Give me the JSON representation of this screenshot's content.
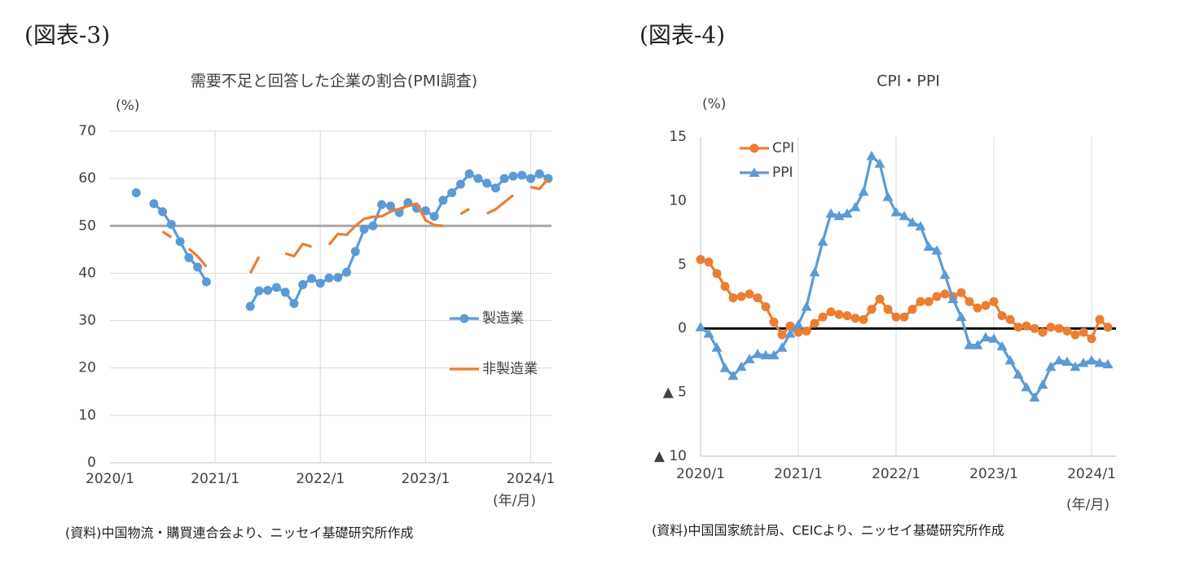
{
  "chart_data": [
    {
      "type": "line",
      "figure_label": "(図表-3)",
      "title": "需要不足と回答した企業の割合(PMI調査)",
      "y_unit": "(%)",
      "x_unit": "(年/月)",
      "source": "(資料)中国物流・購買連合会より、ニッセイ基礎研究所作成",
      "categories": [
        "2020/1",
        null,
        null,
        null,
        null,
        null,
        null,
        null,
        null,
        null,
        null,
        null,
        "2021/1",
        null,
        null,
        null,
        null,
        null,
        null,
        null,
        null,
        null,
        null,
        null,
        "2022/1",
        null,
        null,
        null,
        null,
        null,
        null,
        null,
        null,
        null,
        null,
        null,
        "2023/1",
        null,
        null,
        null,
        null,
        null,
        null,
        null,
        null,
        null,
        null,
        null,
        "2024/1",
        null,
        null
      ],
      "series": [
        {
          "name": "製造業",
          "color": "#5b9bd5",
          "marker": "circle",
          "values": [
            null,
            null,
            null,
            57,
            null,
            54.7,
            53,
            50.3,
            46.7,
            43.3,
            41.3,
            38.2,
            null,
            null,
            null,
            null,
            33,
            36.3,
            36.4,
            37,
            36,
            33.6,
            37.6,
            38.9,
            37.9,
            39,
            39.1,
            40.2,
            44.6,
            49.3,
            50,
            54.5,
            54.2,
            52.8,
            54.9,
            53.7,
            53.2,
            52,
            55.4,
            57,
            58.8,
            61,
            60,
            59,
            58,
            60,
            60.5,
            60.7,
            60,
            61,
            60
          ]
        },
        {
          "name": "非製造業",
          "color": "#ed7d31",
          "marker": "none",
          "values": [
            null,
            null,
            null,
            null,
            null,
            null,
            48.8,
            47.6,
            null,
            45.2,
            43.6,
            41.4,
            null,
            null,
            null,
            null,
            40,
            43.5,
            null,
            null,
            44.2,
            43.6,
            46.2,
            45.6,
            null,
            46,
            48.3,
            48.1,
            50,
            51.5,
            51.9,
            52,
            53,
            53.6,
            54.2,
            54.7,
            51.2,
            50.2,
            50,
            null,
            52.5,
            53.6,
            null,
            52.6,
            53.5,
            55,
            56.5,
            null,
            58.2,
            57.8,
            60
          ]
        }
      ],
      "ylim": [
        0,
        70
      ],
      "yticks": [
        0,
        10,
        20,
        30,
        40,
        50,
        60,
        70
      ],
      "y_grid": true,
      "x_grid": true,
      "reference_line": 50,
      "reference_color": "#a6a6a6",
      "legend": "center right"
    },
    {
      "type": "line",
      "figure_label": "(図表-4)",
      "title": "CPI・PPI",
      "y_unit": "(%)",
      "x_unit": "(年/月)",
      "source": "(資料)中国国家統計局、CEICより、ニッセイ基礎研究所作成",
      "categories": [
        "2020/1",
        null,
        null,
        null,
        null,
        null,
        null,
        null,
        null,
        null,
        null,
        null,
        "2021/1",
        null,
        null,
        null,
        null,
        null,
        null,
        null,
        null,
        null,
        null,
        null,
        "2022/1",
        null,
        null,
        null,
        null,
        null,
        null,
        null,
        null,
        null,
        null,
        null,
        "2023/1",
        null,
        null,
        null,
        null,
        null,
        null,
        null,
        null,
        null,
        null,
        null,
        "2024/1",
        null,
        null
      ],
      "series": [
        {
          "name": "CPI",
          "color": "#ed7d31",
          "marker": "circle",
          "values": [
            5.4,
            5.2,
            4.3,
            3.3,
            2.4,
            2.5,
            2.7,
            2.4,
            1.7,
            0.5,
            -0.5,
            0.2,
            -0.3,
            -0.2,
            0.4,
            0.9,
            1.3,
            1.1,
            1.0,
            0.8,
            0.7,
            1.5,
            2.3,
            1.5,
            0.9,
            0.9,
            1.5,
            2.1,
            2.1,
            2.5,
            2.7,
            2.5,
            2.8,
            2.1,
            1.6,
            1.8,
            2.1,
            1.0,
            0.7,
            0.1,
            0.2,
            0,
            -0.3,
            0.1,
            0,
            -0.2,
            -0.5,
            -0.3,
            -0.8,
            0.7,
            0.1
          ]
        },
        {
          "name": "PPI",
          "color": "#5b9bd5",
          "marker": "triangle",
          "values": [
            0.1,
            -0.4,
            -1.5,
            -3.1,
            -3.7,
            -3.0,
            -2.4,
            -2.0,
            -2.1,
            -2.1,
            -1.5,
            -0.4,
            0.3,
            1.7,
            4.4,
            6.8,
            9.0,
            8.8,
            9.0,
            9.5,
            10.7,
            13.5,
            12.9,
            10.3,
            9.1,
            8.8,
            8.3,
            8.0,
            6.4,
            6.1,
            4.2,
            2.3,
            0.9,
            -1.3,
            -1.3,
            -0.7,
            -0.8,
            -1.4,
            -2.5,
            -3.6,
            -4.6,
            -5.4,
            -4.4,
            -3.0,
            -2.5,
            -2.6,
            -3.0,
            -2.7,
            -2.5,
            -2.7,
            -2.8
          ]
        }
      ],
      "ylim": [
        -10,
        15
      ],
      "yticks": [
        {
          "value": -10,
          "label": "▲ 10"
        },
        {
          "value": -5,
          "label": "▲ 5"
        },
        0,
        5,
        10,
        15
      ],
      "y_grid": false,
      "x_grid": true,
      "reference_line": 0,
      "reference_color": "#000000",
      "legend": "upper left"
    }
  ]
}
